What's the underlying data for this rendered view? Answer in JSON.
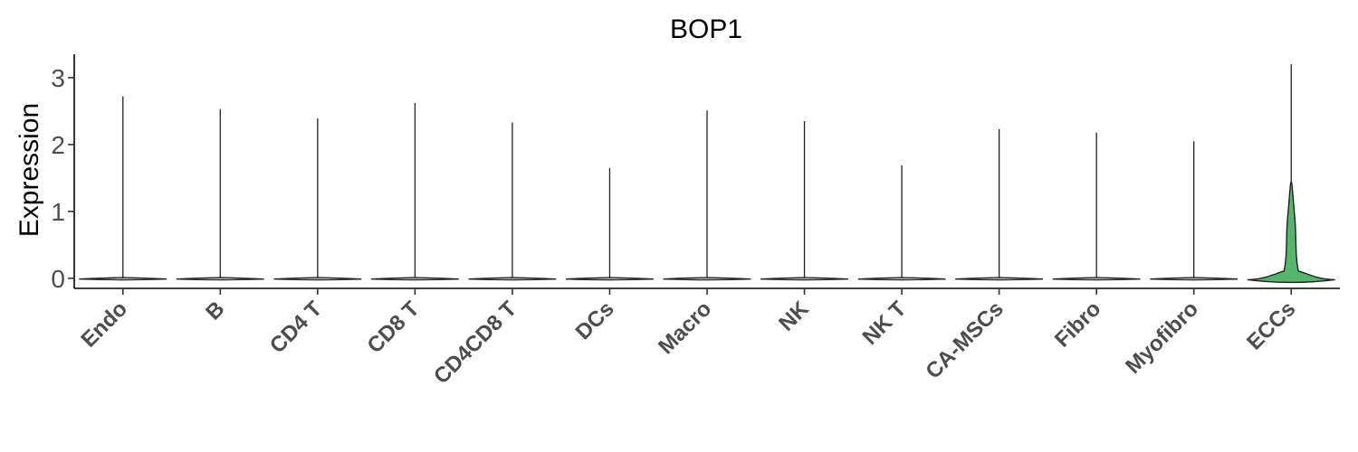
{
  "chart_data": {
    "type": "violin",
    "title": "BOP1",
    "xlabel": "",
    "ylabel": "Expression",
    "ylim": [
      -0.15,
      3.35
    ],
    "yticks": [
      0,
      1,
      2,
      3
    ],
    "grid": false,
    "categories": [
      "Endo",
      "B",
      "CD4 T",
      "CD8 T",
      "CD4CD8 T",
      "DCs",
      "Macro",
      "NK",
      "NK T",
      "CA-MSCs",
      "Fibro",
      "Myofibro",
      "ECCs"
    ],
    "max_values": [
      2.72,
      2.53,
      2.39,
      2.62,
      2.33,
      1.65,
      2.51,
      2.35,
      1.69,
      2.23,
      2.18,
      2.05,
      3.2
    ],
    "median_values": [
      0,
      0,
      0,
      0,
      0,
      0,
      0,
      0,
      0,
      0,
      0,
      0,
      0
    ],
    "series": [
      {
        "values": [
          2.72,
          2.53,
          2.39,
          2.62,
          2.33,
          1.65,
          2.51,
          2.35,
          1.69,
          2.23,
          2.18,
          2.05,
          3.2
        ]
      }
    ],
    "highlight": {
      "category": "ECCs",
      "color": "#55b56a"
    }
  }
}
